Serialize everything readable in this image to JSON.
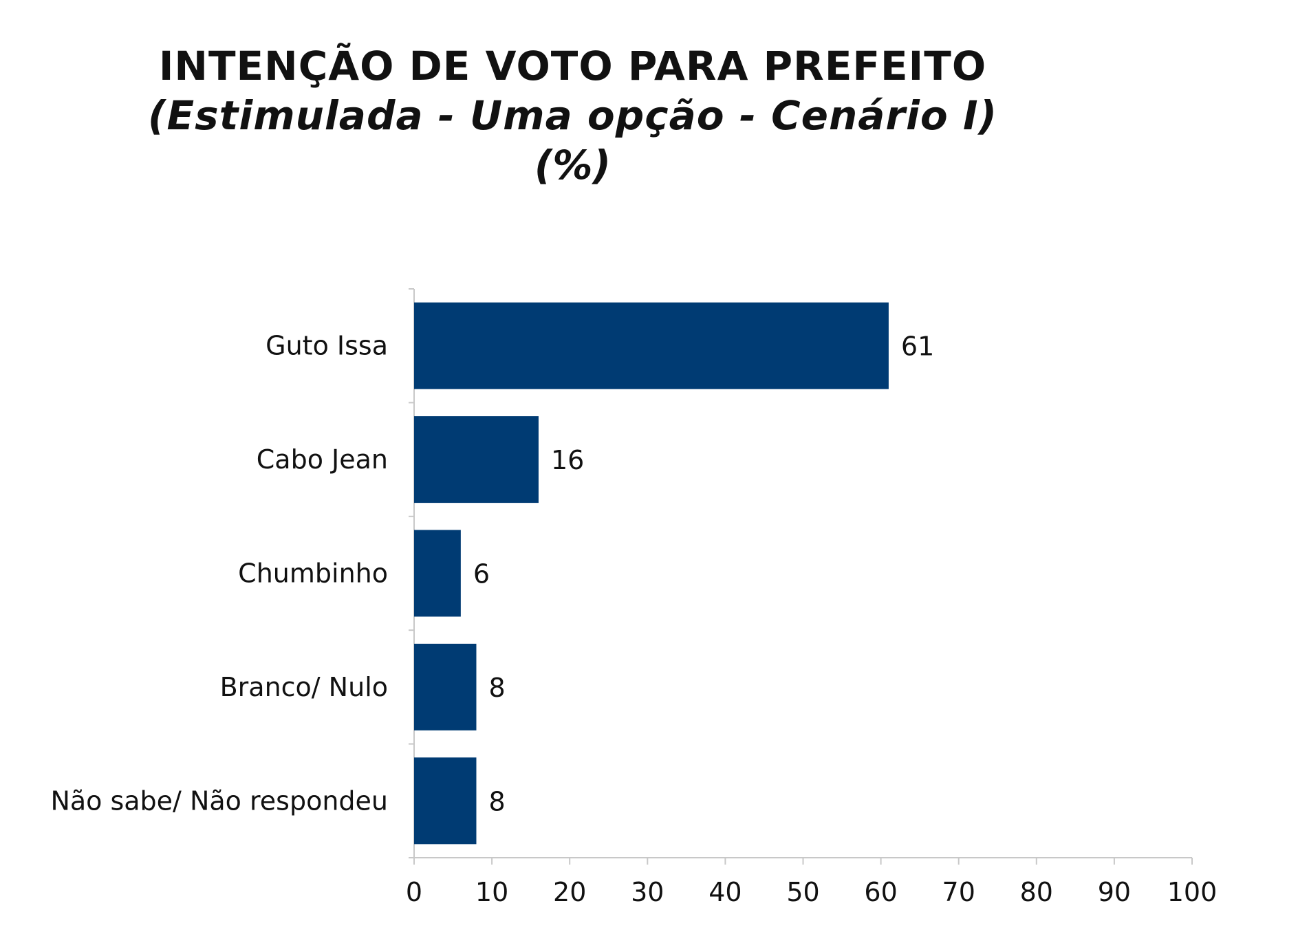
{
  "chart_data": {
    "type": "bar",
    "orientation": "horizontal",
    "title": "INTENÇÃO DE VOTO PARA PREFEITO",
    "subtitle": "(Estimulada - Uma opção - Cenário I)",
    "unit_label": "(%)",
    "categories": [
      "Guto Issa",
      "Cabo Jean",
      "Chumbinho",
      "Branco/ Nulo",
      "Não sabe/ Não respondeu"
    ],
    "values": [
      61,
      16,
      6,
      8,
      8
    ],
    "xlim": [
      0,
      100
    ],
    "xticks": [
      0,
      10,
      20,
      30,
      40,
      50,
      60,
      70,
      80,
      90,
      100
    ],
    "xlabel": "",
    "ylabel": "",
    "grid": false,
    "legend": "none",
    "bar_color": "#003B73"
  }
}
